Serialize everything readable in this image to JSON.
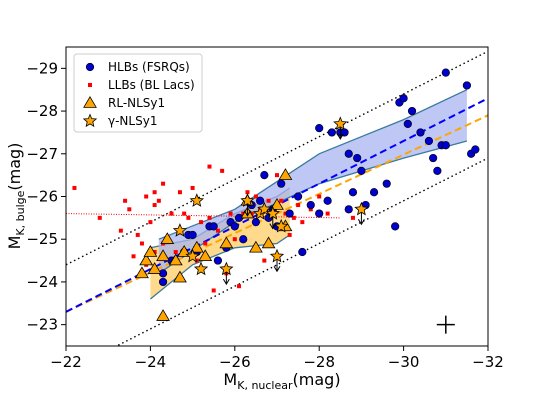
{
  "chart_data": {
    "type": "scatter",
    "xlabel": "M",
    "xlabel_sub": "K, nuclear",
    "xlabel_unit": "(mag)",
    "ylabel": "M",
    "ylabel_sub": "K, bulge",
    "ylabel_unit": "(mag)",
    "xlim": [
      -22,
      -32
    ],
    "ylim": [
      -22.5,
      -29.5
    ],
    "xticks": [
      -22,
      -24,
      -26,
      -28,
      -30,
      -32
    ],
    "yticks": [
      -23,
      -24,
      -25,
      -26,
      -27,
      -28,
      -29
    ],
    "xtick_labels": [
      "−22",
      "−24",
      "−26",
      "−28",
      "−30",
      "−32"
    ],
    "ytick_labels": [
      "−23",
      "−24",
      "−25",
      "−26",
      "−27",
      "−28",
      "−29"
    ],
    "legend": {
      "position": "top-left",
      "entries": [
        "HLBs (FSRQs)",
        "LLBs (BL Lacs)",
        "RL-NLSy1",
        "γ-NLSy1"
      ]
    },
    "colors": {
      "hlb": "#0000cc",
      "llb": "#ff0000",
      "nlsy1": "#ffa500",
      "blue_fit": "#0000ff",
      "orange_fit": "#ffa500",
      "blue_band": "#aab4f0",
      "orange_band": "#ffcc66",
      "band_edge": "#3a7aa0"
    },
    "series": [
      {
        "name": "HLBs (FSRQs)",
        "marker": "circle",
        "points": [
          [
            -24.3,
            -24.2
          ],
          [
            -24.3,
            -24.0
          ],
          [
            -24.5,
            -24.5
          ],
          [
            -24.8,
            -24.7
          ],
          [
            -24.9,
            -25.1
          ],
          [
            -25.0,
            -25.1
          ],
          [
            -25.1,
            -24.7
          ],
          [
            -25.4,
            -25.3
          ],
          [
            -25.5,
            -25.3
          ],
          [
            -25.6,
            -24.5
          ],
          [
            -25.8,
            -24.8
          ],
          [
            -25.9,
            -25.4
          ],
          [
            -26.0,
            -25.3
          ],
          [
            -26.1,
            -25.5
          ],
          [
            -26.2,
            -25.0
          ],
          [
            -26.3,
            -25.6
          ],
          [
            -26.4,
            -25.8
          ],
          [
            -26.5,
            -25.4
          ],
          [
            -26.6,
            -25.9
          ],
          [
            -26.7,
            -26.5
          ],
          [
            -26.8,
            -25.5
          ],
          [
            -26.9,
            -25.7
          ],
          [
            -27.0,
            -25.3
          ],
          [
            -27.1,
            -26.3
          ],
          [
            -27.3,
            -25.6
          ],
          [
            -27.5,
            -26.0
          ],
          [
            -27.6,
            -24.7
          ],
          [
            -27.8,
            -25.8
          ],
          [
            -28.0,
            -25.6
          ],
          [
            -28.2,
            -25.9
          ],
          [
            -28.0,
            -27.6
          ],
          [
            -28.3,
            -27.5
          ],
          [
            -28.5,
            -27.5
          ],
          [
            -28.6,
            -27.5
          ],
          [
            -28.7,
            -27.0
          ],
          [
            -28.9,
            -26.9
          ],
          [
            -28.8,
            -26.1
          ],
          [
            -28.7,
            -25.7
          ],
          [
            -29.0,
            -26.6
          ],
          [
            -29.1,
            -25.8
          ],
          [
            -29.3,
            -26.1
          ],
          [
            -29.6,
            -26.3
          ],
          [
            -29.8,
            -25.3
          ],
          [
            -29.9,
            -28.2
          ],
          [
            -30.0,
            -28.3
          ],
          [
            -30.1,
            -27.7
          ],
          [
            -30.2,
            -28.0
          ],
          [
            -30.4,
            -27.5
          ],
          [
            -30.6,
            -27.3
          ],
          [
            -30.7,
            -26.9
          ],
          [
            -30.8,
            -26.6
          ],
          [
            -30.9,
            -27.2
          ],
          [
            -31.0,
            -27.2
          ],
          [
            -31.0,
            -28.9
          ],
          [
            -31.5,
            -28.6
          ],
          [
            -31.6,
            -27.0
          ],
          [
            -31.7,
            -27.1
          ]
        ]
      },
      {
        "name": "LLBs (BL Lacs)",
        "marker": "square",
        "points": [
          [
            -22.2,
            -26.2
          ],
          [
            -22.8,
            -25.5
          ],
          [
            -23.3,
            -25.2
          ],
          [
            -23.4,
            -25.9
          ],
          [
            -23.5,
            -25.7
          ],
          [
            -23.6,
            -24.6
          ],
          [
            -23.7,
            -25.1
          ],
          [
            -23.8,
            -24.9
          ],
          [
            -23.9,
            -24.4
          ],
          [
            -23.9,
            -26.0
          ],
          [
            -24.0,
            -25.4
          ],
          [
            -24.1,
            -26.1
          ],
          [
            -24.1,
            -25.8
          ],
          [
            -24.1,
            -24.7
          ],
          [
            -24.2,
            -25.9
          ],
          [
            -24.3,
            -26.3
          ],
          [
            -24.3,
            -24.9
          ],
          [
            -24.4,
            -25.0
          ],
          [
            -24.5,
            -25.6
          ],
          [
            -24.6,
            -24.7
          ],
          [
            -24.7,
            -26.1
          ],
          [
            -24.8,
            -25.6
          ],
          [
            -24.9,
            -25.5
          ],
          [
            -25.0,
            -26.2
          ],
          [
            -25.1,
            -24.5
          ],
          [
            -25.2,
            -25.4
          ],
          [
            -25.3,
            -24.9
          ],
          [
            -25.4,
            -26.7
          ],
          [
            -25.4,
            -25.5
          ],
          [
            -25.5,
            -23.8
          ],
          [
            -25.6,
            -25.2
          ],
          [
            -25.7,
            -26.6
          ],
          [
            -25.8,
            -24.2
          ],
          [
            -25.9,
            -25.6
          ],
          [
            -26.0,
            -25.0
          ],
          [
            -26.1,
            -23.9
          ],
          [
            -26.2,
            -25.6
          ],
          [
            -26.3,
            -26.1
          ],
          [
            -26.4,
            -25.6
          ],
          [
            -26.5,
            -26.0
          ],
          [
            -26.6,
            -25.7
          ],
          [
            -26.7,
            -24.5
          ],
          [
            -26.8,
            -25.9
          ],
          [
            -26.9,
            -25.7
          ],
          [
            -27.0,
            -26.5
          ],
          [
            -27.1,
            -25.9
          ],
          [
            -27.2,
            -25.6
          ],
          [
            -27.3,
            -25.1
          ],
          [
            -27.4,
            -25.5
          ],
          [
            -27.5,
            -25.8
          ],
          [
            -27.6,
            -25.4
          ],
          [
            -27.8,
            -25.7
          ],
          [
            -28.0,
            -26.0
          ],
          [
            -28.2,
            -25.6
          ],
          [
            -28.8,
            -25.5
          ]
        ]
      },
      {
        "name": "RL-NLSy1",
        "marker": "triangle",
        "points": [
          [
            -23.8,
            -24.2
          ],
          [
            -23.9,
            -24.5
          ],
          [
            -24.0,
            -24.7
          ],
          [
            -24.1,
            -24.3
          ],
          [
            -24.3,
            -23.2
          ],
          [
            -24.3,
            -24.6
          ],
          [
            -24.4,
            -25.0
          ],
          [
            -24.6,
            -24.5
          ],
          [
            -24.7,
            -24.1
          ],
          [
            -24.8,
            -24.7
          ],
          [
            -25.1,
            -24.8
          ],
          [
            -25.3,
            -24.6
          ],
          [
            -25.8,
            -24.9
          ],
          [
            -26.3,
            -25.9
          ],
          [
            -26.3,
            -25.6
          ],
          [
            -26.5,
            -24.8
          ],
          [
            -26.8,
            -24.9
          ],
          [
            -27.0,
            -25.8
          ],
          [
            -27.2,
            -26.5
          ],
          [
            -27.2,
            -25.3
          ]
        ]
      },
      {
        "name": "γ-NLSy1",
        "marker": "star",
        "upper_limit_x": [
          -25.8,
          -26.3,
          -26.9,
          -27.0,
          -28.5,
          -29.0
        ],
        "points": [
          [
            -24.7,
            -25.2
          ],
          [
            -25.0,
            -24.6
          ],
          [
            -25.2,
            -24.3
          ],
          [
            -25.1,
            -25.9
          ],
          [
            -25.8,
            -24.3
          ],
          [
            -26.3,
            -25.9
          ],
          [
            -26.6,
            -25.6
          ],
          [
            -26.7,
            -25.7
          ],
          [
            -26.9,
            -25.6
          ],
          [
            -27.0,
            -24.6
          ],
          [
            -27.1,
            -25.3
          ],
          [
            -28.5,
            -27.7
          ],
          [
            -29.0,
            -25.7
          ]
        ]
      }
    ],
    "fits": {
      "blue": {
        "x": [
          -22,
          -32
        ],
        "y": [
          -23.3,
          -28.3
        ]
      },
      "orange": {
        "x": [
          -22,
          -32
        ],
        "y": [
          -23.3,
          -27.9
        ]
      },
      "red_dotted": {
        "x": [
          -22,
          -28.5
        ],
        "y": [
          -25.6,
          -25.5
        ]
      },
      "dotted_upper": {
        "x": [
          -22,
          -32
        ],
        "y": [
          -24.4,
          -29.4
        ]
      },
      "dotted_lower": {
        "x": [
          -22,
          -32
        ],
        "y": [
          -21.9,
          -26.9
        ]
      }
    },
    "bands": {
      "blue": {
        "upper": [
          [
            -24.2,
            -25.0
          ],
          [
            -26,
            -25.7
          ],
          [
            -28,
            -27.0
          ],
          [
            -30,
            -27.8
          ],
          [
            -31.5,
            -28.5
          ]
        ],
        "lower": [
          [
            -31.5,
            -27.3
          ],
          [
            -30,
            -26.9
          ],
          [
            -28,
            -26.3
          ],
          [
            -26,
            -25.4
          ],
          [
            -24.2,
            -24.2
          ]
        ]
      },
      "orange": {
        "upper": [
          [
            -24,
            -24.8
          ],
          [
            -25,
            -25.0
          ],
          [
            -26,
            -25.6
          ],
          [
            -27,
            -26.0
          ],
          [
            -27.3,
            -26.2
          ]
        ],
        "lower": [
          [
            -27.3,
            -25.1
          ],
          [
            -27,
            -24.9
          ],
          [
            -26,
            -24.8
          ],
          [
            -25,
            -24.4
          ],
          [
            -24,
            -23.6
          ]
        ]
      }
    },
    "error_cross": {
      "x": -31.0,
      "y": -23.0
    }
  }
}
